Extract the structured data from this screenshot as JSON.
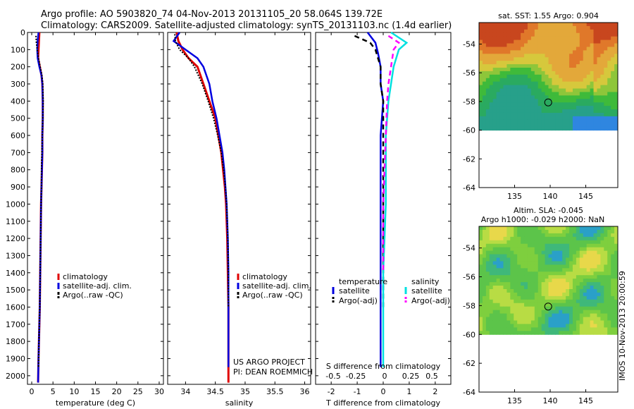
{
  "header": {
    "line1": "Argo profile: AO 5903820_74 04-Nov-2013 20131105_20 58.064S 139.72E",
    "line2": "Climatology: CARS2009. Satellite-adjusted climatology: synTS_20131103.nc (1.4d earlier)"
  },
  "side_text": "IMOS 10-Nov-2013 20:00:59",
  "colors": {
    "climatology": "#e00000",
    "satellite": "#0000e0",
    "argo": "#000000",
    "sat_sal": "#00e0e0",
    "argo_sal": "#ff00ff"
  },
  "chart_data": [
    {
      "id": "temperature",
      "type": "line",
      "xlabel": "temperature (deg C)",
      "ylabel": "",
      "xlim": [
        -1,
        31
      ],
      "ylim": [
        2050,
        0
      ],
      "xticks": [
        0,
        5,
        10,
        15,
        20,
        25,
        30
      ],
      "yticks": [
        0,
        100,
        200,
        300,
        400,
        500,
        600,
        700,
        800,
        900,
        1000,
        1100,
        1200,
        1300,
        1400,
        1500,
        1600,
        1700,
        1800,
        1900,
        2000
      ],
      "legend": [
        "climatology",
        "satellite-adj. clim.",
        "Argo(..raw -QC)"
      ],
      "series": [
        {
          "name": "climatology",
          "color": "#e00000",
          "x": [
            1.8,
            1.7,
            1.6,
            1.5,
            1.9,
            2.3,
            2.5,
            2.6,
            2.6,
            2.5,
            2.5,
            2.4,
            2.3,
            2.2,
            2.1,
            2.0,
            1.9,
            1.8,
            1.7,
            1.6,
            1.5
          ],
          "y": [
            0,
            50,
            100,
            150,
            200,
            250,
            300,
            400,
            500,
            600,
            700,
            800,
            900,
            1000,
            1200,
            1400,
            1600,
            1700,
            1800,
            1900,
            2040
          ]
        },
        {
          "name": "satellite-adj. clim.",
          "color": "#0000e0",
          "x": [
            1.6,
            1.4,
            1.3,
            1.4,
            1.8,
            2.3,
            2.5,
            2.6,
            2.6,
            2.5,
            2.5,
            2.4,
            2.3,
            2.2,
            2.1,
            2.0,
            1.9,
            1.8,
            1.7,
            1.6,
            1.5
          ],
          "y": [
            0,
            50,
            100,
            150,
            200,
            250,
            300,
            400,
            500,
            600,
            700,
            800,
            900,
            1000,
            1200,
            1400,
            1600,
            1700,
            1800,
            1900,
            2040
          ]
        },
        {
          "name": "Argo(..raw -QC)",
          "color": "#000000",
          "x": [
            1.0,
            1.1,
            1.3,
            1.6,
            2.0,
            2.4,
            2.6,
            2.7,
            2.6,
            2.5,
            2.4,
            2.3,
            2.3,
            2.2,
            2.1,
            2.0,
            1.9,
            1.8,
            1.7,
            1.6
          ],
          "y": [
            20,
            60,
            100,
            150,
            200,
            250,
            300,
            400,
            500,
            600,
            700,
            800,
            900,
            1000,
            1200,
            1400,
            1600,
            1700,
            1800,
            1950
          ]
        }
      ]
    },
    {
      "id": "salinity",
      "type": "line",
      "xlabel": "salinity",
      "ylabel": "",
      "xlim": [
        33.7,
        36.1
      ],
      "ylim": [
        2050,
        0
      ],
      "xticks": [
        34,
        34.5,
        35,
        35.5,
        36
      ],
      "xticklabels": [
        "34",
        "34.5",
        "35",
        "35.5",
        "36"
      ],
      "legend": [
        "climatology",
        "satellite-adj. clim.",
        "Argo(..raw -QC)"
      ],
      "annotations": [
        "US ARGO PROJECT",
        "PI: DEAN ROEMMICH"
      ],
      "series": [
        {
          "name": "climatology",
          "color": "#e00000",
          "x": [
            33.85,
            33.88,
            33.95,
            34.05,
            34.2,
            34.3,
            34.4,
            34.5,
            34.55,
            34.6,
            34.63,
            34.66,
            34.68,
            34.69,
            34.7,
            34.71,
            34.72,
            34.72,
            34.72,
            34.72
          ],
          "y": [
            0,
            50,
            100,
            150,
            200,
            300,
            400,
            500,
            600,
            700,
            800,
            900,
            1000,
            1100,
            1200,
            1400,
            1600,
            1800,
            1900,
            2040
          ]
        },
        {
          "name": "satellite-adj. clim.",
          "color": "#0000e0",
          "x": [
            33.9,
            33.8,
            34.0,
            34.2,
            34.3,
            34.4,
            34.45,
            34.52,
            34.57,
            34.62,
            34.65,
            34.67,
            34.69,
            34.7,
            34.71,
            34.72,
            34.72,
            34.72,
            34.72
          ],
          "y": [
            0,
            50,
            100,
            150,
            200,
            300,
            400,
            500,
            600,
            700,
            800,
            900,
            1000,
            1100,
            1200,
            1400,
            1600,
            1800,
            1950
          ]
        },
        {
          "name": "Argo(..raw -QC)",
          "color": "#000000",
          "x": [
            33.82,
            33.83,
            33.9,
            34.05,
            34.15,
            34.28,
            34.38,
            34.47,
            34.54,
            34.6,
            34.64,
            34.67,
            34.69,
            34.7,
            34.71,
            34.72,
            34.72
          ],
          "y": [
            10,
            50,
            100,
            150,
            200,
            300,
            400,
            500,
            600,
            700,
            800,
            900,
            1000,
            1100,
            1200,
            1400,
            1600
          ]
        }
      ]
    },
    {
      "id": "difference",
      "type": "line",
      "xlabel": "T difference from climatology",
      "xlabel_top": "S difference from climatology",
      "xlim": [
        -2.6,
        2.6
      ],
      "ylim": [
        2050,
        0
      ],
      "xticks": [
        -2,
        -1,
        0,
        1,
        2
      ],
      "xticklabels_top": [
        "-0.5",
        "-0.25",
        "0",
        "0.25",
        "0.5"
      ],
      "legend_titles": [
        "temperature",
        "salinity"
      ],
      "legend": [
        "satellite",
        "Argo(-adj)",
        "satellite",
        "Argo(-adj)"
      ],
      "series": [
        {
          "name": "temperature satellite",
          "color": "#0000e0",
          "x": [
            -0.6,
            -0.3,
            -0.2,
            -0.1,
            -0.1,
            0,
            -0.1,
            -0.1,
            -0.1,
            -0.1,
            -0.1,
            -0.1,
            -0.1
          ],
          "y": [
            0,
            60,
            120,
            200,
            300,
            400,
            600,
            800,
            1000,
            1200,
            1400,
            1600,
            1950
          ]
        },
        {
          "name": "temperature Argo(-adj)",
          "color": "#000000",
          "x": [
            -1.1,
            -0.5,
            -0.3,
            -0.2,
            -0.1,
            -0.1,
            0,
            0,
            0,
            0,
            0,
            0
          ],
          "y": [
            20,
            60,
            100,
            150,
            200,
            300,
            400,
            600,
            800,
            1000,
            1200,
            1600
          ]
        },
        {
          "name": "salinity satellite",
          "color": "#00e0e0",
          "x": [
            0.3,
            0.9,
            0.6,
            0.5,
            0.4,
            0.3,
            0.2,
            0.1,
            0.1,
            0.1,
            0,
            0
          ],
          "y": [
            0,
            60,
            100,
            150,
            200,
            300,
            400,
            600,
            800,
            1000,
            1400,
            1950
          ]
        },
        {
          "name": "salinity Argo(-adj)",
          "color": "#ff00ff",
          "x": [
            0.2,
            0.6,
            0.4,
            0.3,
            0.2,
            0.15,
            0.1,
            0.05,
            0,
            0
          ],
          "y": [
            20,
            60,
            100,
            200,
            300,
            400,
            600,
            800,
            1000,
            1400
          ]
        }
      ]
    },
    {
      "id": "sst-map",
      "type": "heatmap",
      "title": "sat. SST: 1.55 Argo: 0.904",
      "xlim": [
        130,
        149.5
      ],
      "ylim": [
        -64,
        -52.5
      ],
      "xticks": [
        135,
        140,
        145
      ],
      "yticks": [
        -54,
        -56,
        -58,
        -60,
        -62,
        -64
      ],
      "marker": {
        "x": 139.72,
        "y": -58.064
      }
    },
    {
      "id": "sla-map",
      "type": "heatmap",
      "title_lines": [
        "Altim. SLA: -0.045",
        "Argo h1000: -0.029 h2000: NaN"
      ],
      "xlim": [
        130,
        149.5
      ],
      "ylim": [
        -64,
        -52.5
      ],
      "xticks": [
        135,
        140,
        145
      ],
      "yticks": [
        -54,
        -56,
        -58,
        -60,
        -62,
        -64
      ],
      "marker": {
        "x": 139.72,
        "y": -58.064
      }
    }
  ]
}
